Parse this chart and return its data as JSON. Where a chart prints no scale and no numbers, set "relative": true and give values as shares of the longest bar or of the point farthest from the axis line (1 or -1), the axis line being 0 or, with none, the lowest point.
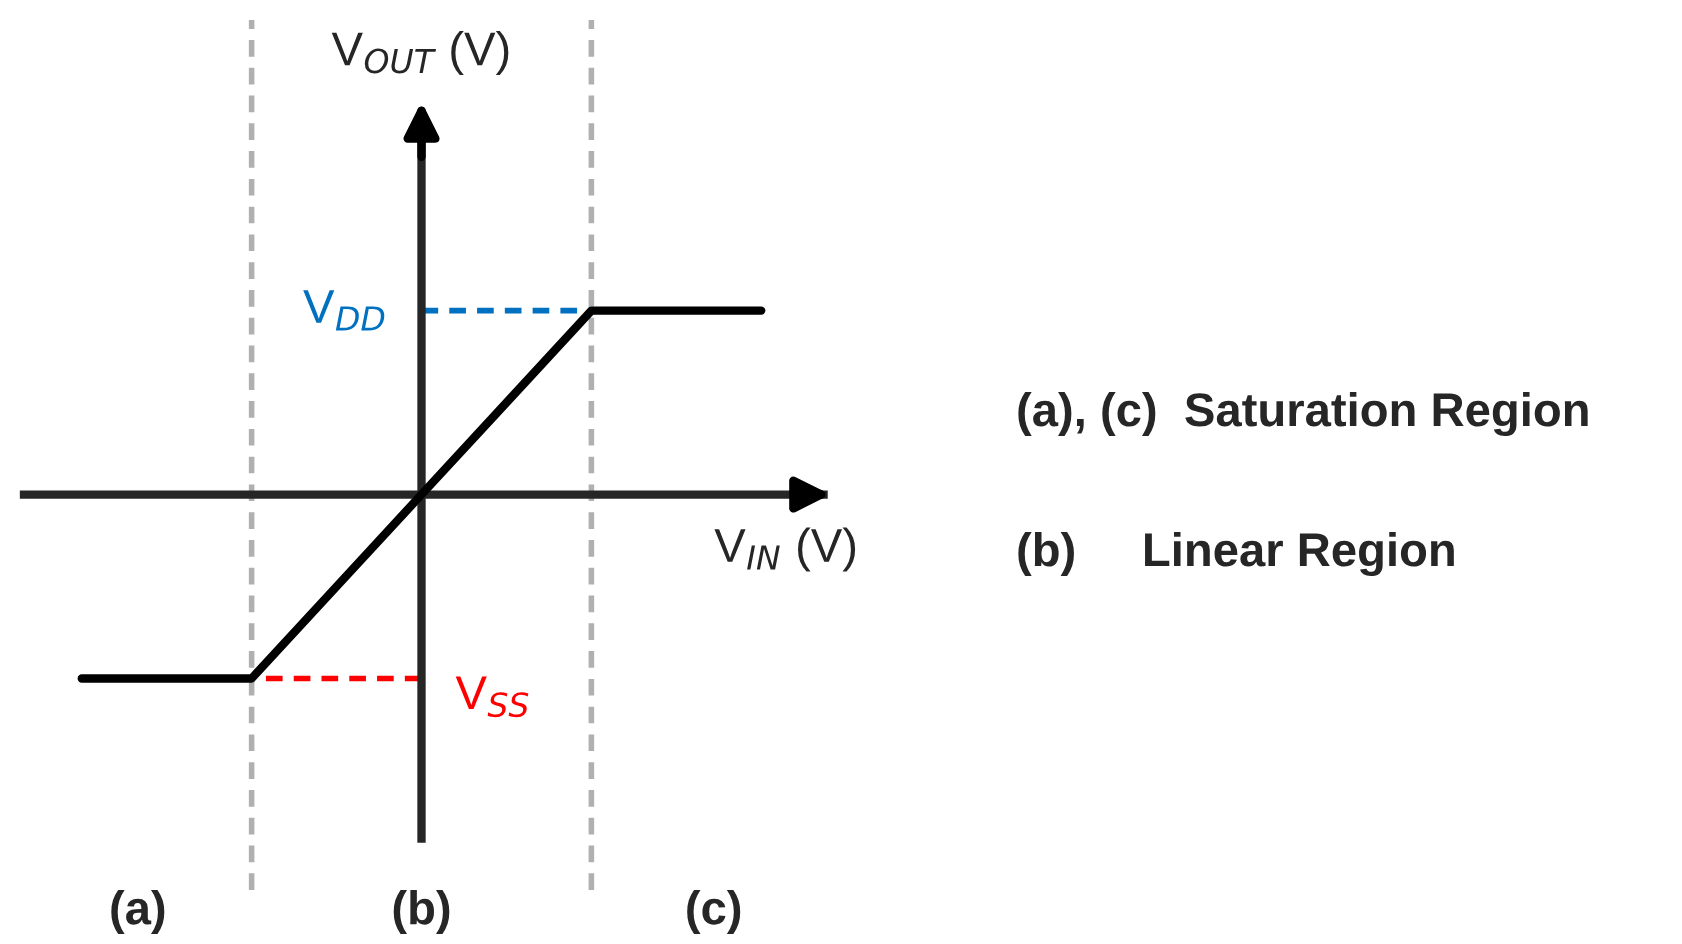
{
  "chart_data": {
    "type": "line",
    "relative": true,
    "xlabel": "V$_{IN}$ (V)",
    "ylabel": "V$_{OUT}$ (V)",
    "categories": [
      null,
      null,
      null,
      null,
      null,
      null,
      null,
      null,
      null
    ],
    "series": [
      {
        "color": "#000000",
        "values": [
          -1,
          -1,
          -1,
          -0.5,
          0,
          0.5,
          1,
          1,
          1
        ]
      }
    ],
    "ref_lines": [
      {
        "axis": "y",
        "value": 1,
        "label": "V$_{DD}$",
        "color": "#0070c0",
        "line_style": "dashed"
      },
      {
        "axis": "y",
        "value": -1,
        "label": "V$_{SS}$",
        "color": "#ff0000",
        "line_style": "dashed"
      }
    ],
    "annotations": [
      "(a)",
      "(b)",
      "(c)",
      "(a), (c)  Saturation Region",
      "(b)     Linear Region"
    ],
    "tick_labels": false,
    "legend": false,
    "marker": "none",
    "line_style": "solid"
  }
}
